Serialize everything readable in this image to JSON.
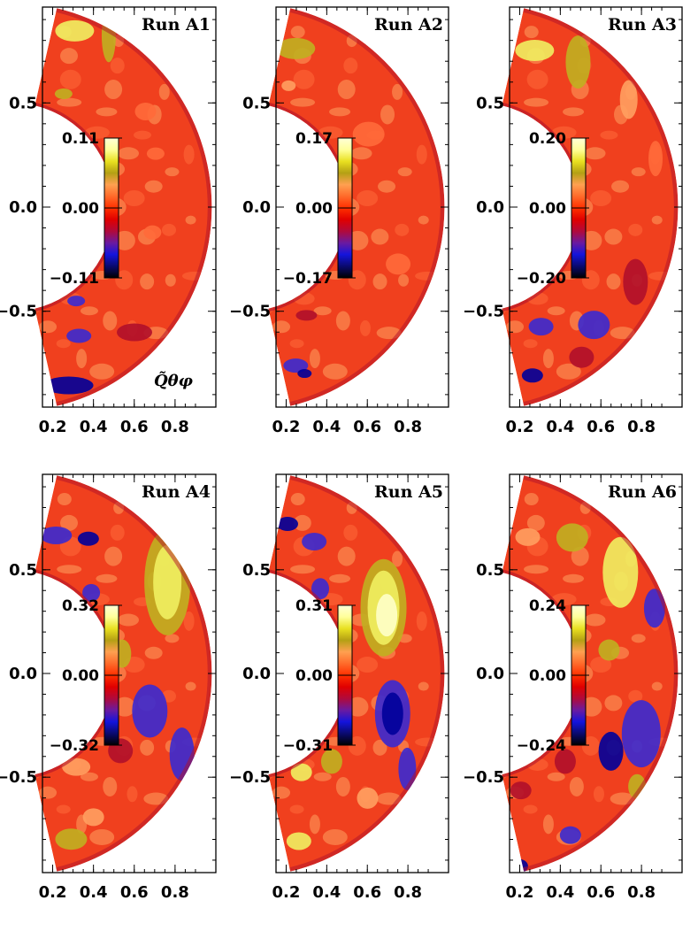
{
  "quantity_label": "Q̃θφ",
  "colorbar_colors": [
    "#000000",
    "#0a0a6e",
    "#1414dc",
    "#6a1aa0",
    "#b00a3c",
    "#e00000",
    "#ff3000",
    "#ff6a2a",
    "#ffa050",
    "#b4a014",
    "#e8e020",
    "#ffff9a",
    "#ffffd8"
  ],
  "field_colors": {
    "strong_neg": "#00009a",
    "neg": "#3a2ad0",
    "weak_neg": "#b0102a",
    "base": "#f0401e",
    "base2": "#ff6a3a",
    "weak_pos": "#ffa060",
    "pos": "#c0b020",
    "strong_pos": "#f0f060",
    "peak": "#ffffc8"
  },
  "chart_data": [
    {
      "type": "heatmap",
      "title": "Run A1",
      "colorbar": {
        "max": "0.11",
        "mid": "0.00",
        "min": "−0.11"
      },
      "xticks": [
        "0.2",
        "0.4",
        "0.6",
        "0.8"
      ],
      "yticks": [
        "0.5",
        "0.0",
        "−0.5"
      ],
      "annotation": "Q̃θφ",
      "r_range": [
        0.5,
        0.98
      ]
    },
    {
      "type": "heatmap",
      "title": "Run A2",
      "colorbar": {
        "max": "0.17",
        "mid": "0.00",
        "min": "−0.17"
      },
      "xticks": [
        "0.2",
        "0.4",
        "0.6",
        "0.8"
      ],
      "yticks": [
        "0.5",
        "0.0",
        "−0.5"
      ],
      "annotation": "",
      "r_range": [
        0.5,
        0.98
      ]
    },
    {
      "type": "heatmap",
      "title": "Run A3",
      "colorbar": {
        "max": "0.20",
        "mid": "0.00",
        "min": "−0.20"
      },
      "xticks": [
        "0.2",
        "0.4",
        "0.6",
        "0.8"
      ],
      "yticks": [
        "0.5",
        "0.0",
        "−0.5"
      ],
      "annotation": "",
      "r_range": [
        0.5,
        0.98
      ]
    },
    {
      "type": "heatmap",
      "title": "Run A4",
      "colorbar": {
        "max": "0.32",
        "mid": "0.00",
        "min": "−0.32"
      },
      "xticks": [
        "0.2",
        "0.4",
        "0.6",
        "0.8"
      ],
      "yticks": [
        "0.5",
        "0.0",
        "−0.5"
      ],
      "annotation": "",
      "r_range": [
        0.5,
        0.98
      ]
    },
    {
      "type": "heatmap",
      "title": "Run A5",
      "colorbar": {
        "max": "0.31",
        "mid": "0.00",
        "min": "−0.31"
      },
      "xticks": [
        "0.2",
        "0.4",
        "0.6",
        "0.8"
      ],
      "yticks": [
        "0.5",
        "0.0",
        "−0.5"
      ],
      "annotation": "",
      "r_range": [
        0.5,
        0.98
      ]
    },
    {
      "type": "heatmap",
      "title": "Run A6",
      "colorbar": {
        "max": "0.24",
        "mid": "0.00",
        "min": "−0.24"
      },
      "xticks": [
        "0.2",
        "0.4",
        "0.6",
        "0.8"
      ],
      "yticks": [
        "0.5",
        "0.0",
        "−0.5"
      ],
      "annotation": "",
      "r_range": [
        0.5,
        0.98
      ]
    }
  ]
}
